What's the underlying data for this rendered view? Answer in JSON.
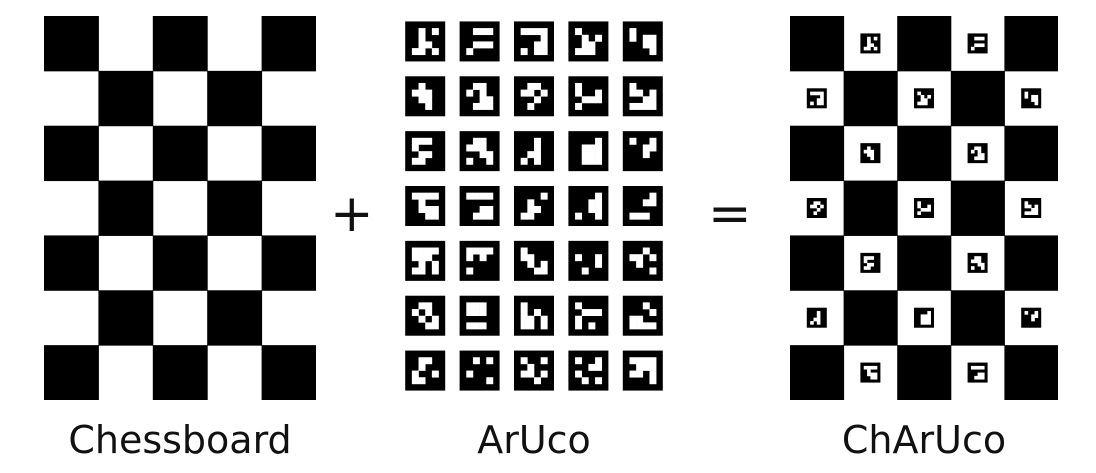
{
  "labels": {
    "chessboard": "Chessboard",
    "aruco": "ArUco",
    "charuco": "ChArUco"
  },
  "operators": {
    "plus": "+",
    "equals": "="
  },
  "colors": {
    "ink": "#000000",
    "paper": "#ffffff"
  }
}
